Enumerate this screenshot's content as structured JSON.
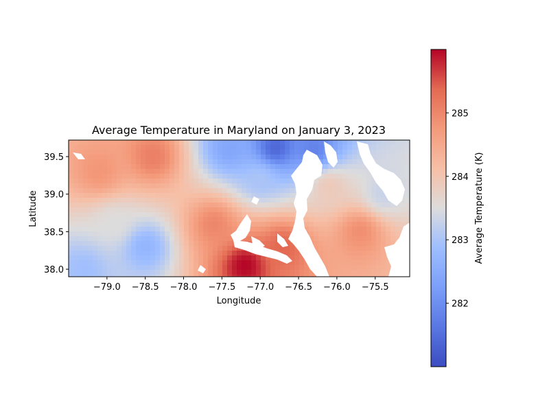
{
  "chart_data": {
    "type": "heatmap",
    "title": "Average Temperature in Maryland on January 3, 2023",
    "xlabel": "Longitude",
    "ylabel": "Latitude",
    "xlim": [
      -79.5,
      -75.05
    ],
    "ylim": [
      37.9,
      39.72
    ],
    "x_ticks": [
      -79.0,
      -78.5,
      -78.0,
      -77.5,
      -77.0,
      -76.5,
      -76.0,
      -75.5
    ],
    "x_tick_labels": [
      "−79.0",
      "−78.5",
      "−78.0",
      "−77.5",
      "−77.0",
      "−76.5",
      "−76.0",
      "−75.5"
    ],
    "y_ticks": [
      38.0,
      38.5,
      39.0,
      39.5
    ],
    "y_tick_labels": [
      "38.0",
      "38.5",
      "39.0",
      "39.5"
    ],
    "colormap": "coolwarm",
    "colorbar": {
      "label": "Average Temperature (K)",
      "range": [
        281.0,
        286.0
      ],
      "ticks": [
        282,
        283,
        284,
        285
      ],
      "tick_labels": [
        "282",
        "283",
        "284",
        "285"
      ]
    },
    "field_sketch": [
      {
        "lon": -79.1,
        "lat": 39.3,
        "value": 284.8
      },
      {
        "lon": -78.4,
        "lat": 39.5,
        "value": 285.1
      },
      {
        "lon": -78.9,
        "lat": 38.6,
        "value": 283.5
      },
      {
        "lon": -78.5,
        "lat": 38.3,
        "value": 282.7
      },
      {
        "lon": -79.3,
        "lat": 38.0,
        "value": 282.9
      },
      {
        "lon": -77.4,
        "lat": 39.6,
        "value": 282.4
      },
      {
        "lon": -76.8,
        "lat": 39.62,
        "value": 281.4
      },
      {
        "lon": -76.3,
        "lat": 39.6,
        "value": 281.8
      },
      {
        "lon": -77.0,
        "lat": 39.2,
        "value": 283.0
      },
      {
        "lon": -77.6,
        "lat": 38.6,
        "value": 285.0
      },
      {
        "lon": -77.2,
        "lat": 38.05,
        "value": 286.0
      },
      {
        "lon": -76.7,
        "lat": 38.3,
        "value": 285.4
      },
      {
        "lon": -75.7,
        "lat": 38.5,
        "value": 284.9
      },
      {
        "lon": -76.1,
        "lat": 39.1,
        "value": 283.9
      },
      {
        "lon": -75.4,
        "lat": 39.0,
        "value": 283.3
      }
    ]
  }
}
